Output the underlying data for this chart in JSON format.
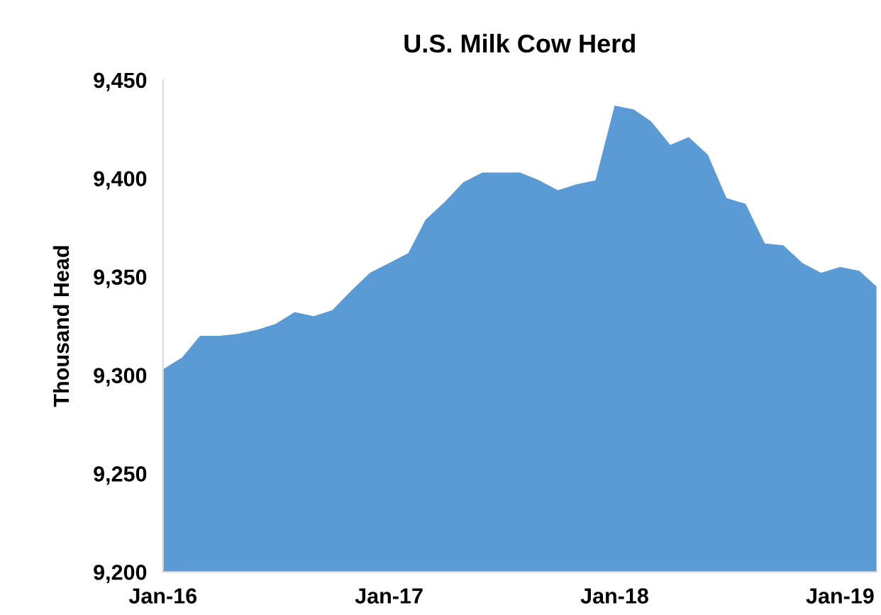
{
  "chart_data": {
    "type": "area",
    "title": "U.S. Milk Cow Herd",
    "ylabel": "Thousand Head",
    "x": [
      "2016-01",
      "2016-02",
      "2016-03",
      "2016-04",
      "2016-05",
      "2016-06",
      "2016-07",
      "2016-08",
      "2016-09",
      "2016-10",
      "2016-11",
      "2016-12",
      "2017-01",
      "2017-02",
      "2017-03",
      "2017-04",
      "2017-05",
      "2017-06",
      "2017-07",
      "2017-08",
      "2017-09",
      "2017-10",
      "2017-11",
      "2017-12",
      "2018-01",
      "2018-02",
      "2018-03",
      "2018-04",
      "2018-05",
      "2018-06",
      "2018-07",
      "2018-08",
      "2018-09",
      "2018-10",
      "2018-11",
      "2018-12",
      "2019-01",
      "2019-02",
      "2019-03"
    ],
    "series": [
      {
        "color": "#5b9bd5",
        "values": [
          9303,
          9309,
          9320,
          9320,
          9321,
          9323,
          9326,
          9332,
          9330,
          9333,
          9343,
          9352,
          9357,
          9362,
          9379,
          9388,
          9398,
          9403,
          9403,
          9403,
          9399,
          9394,
          9397,
          9399,
          9437,
          9435,
          9429,
          9417,
          9421,
          9412,
          9390,
          9387,
          9367,
          9366,
          9357,
          9352,
          9355,
          9353,
          9345
        ]
      }
    ],
    "xlim": [
      "2016-01",
      "2019-03"
    ],
    "xticks": [
      {
        "value": "2016-01",
        "label": "Jan-16"
      },
      {
        "value": "2017-01",
        "label": "Jan-17"
      },
      {
        "value": "2018-01",
        "label": "Jan-18"
      },
      {
        "value": "2019-01",
        "label": "Jan-19"
      }
    ],
    "ylim": [
      9200,
      9450
    ],
    "yticks": [
      {
        "value": 9200,
        "label": "9,200"
      },
      {
        "value": 9250,
        "label": "9,250"
      },
      {
        "value": 9300,
        "label": "9,300"
      },
      {
        "value": 9350,
        "label": "9,350"
      },
      {
        "value": 9400,
        "label": "9,400"
      },
      {
        "value": 9450,
        "label": "9,450"
      }
    ],
    "grid": false
  }
}
